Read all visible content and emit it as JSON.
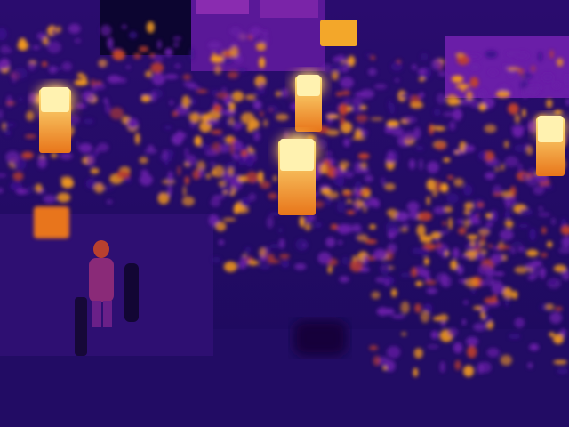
{
  "palette": {
    "cold": "#1a0a5e",
    "cool": "#3a0f8a",
    "mid": "#6a1fa8",
    "warm": "#c2402a",
    "hot": "#f39a1b",
    "hottest": "#fff2b0"
  },
  "scene": {
    "type": "thermal-infrared-photo",
    "colormap": "inferno",
    "subjects": [
      "garden-lamp-posts",
      "foliage",
      "person-silhouette",
      "building-wall",
      "fence"
    ]
  }
}
